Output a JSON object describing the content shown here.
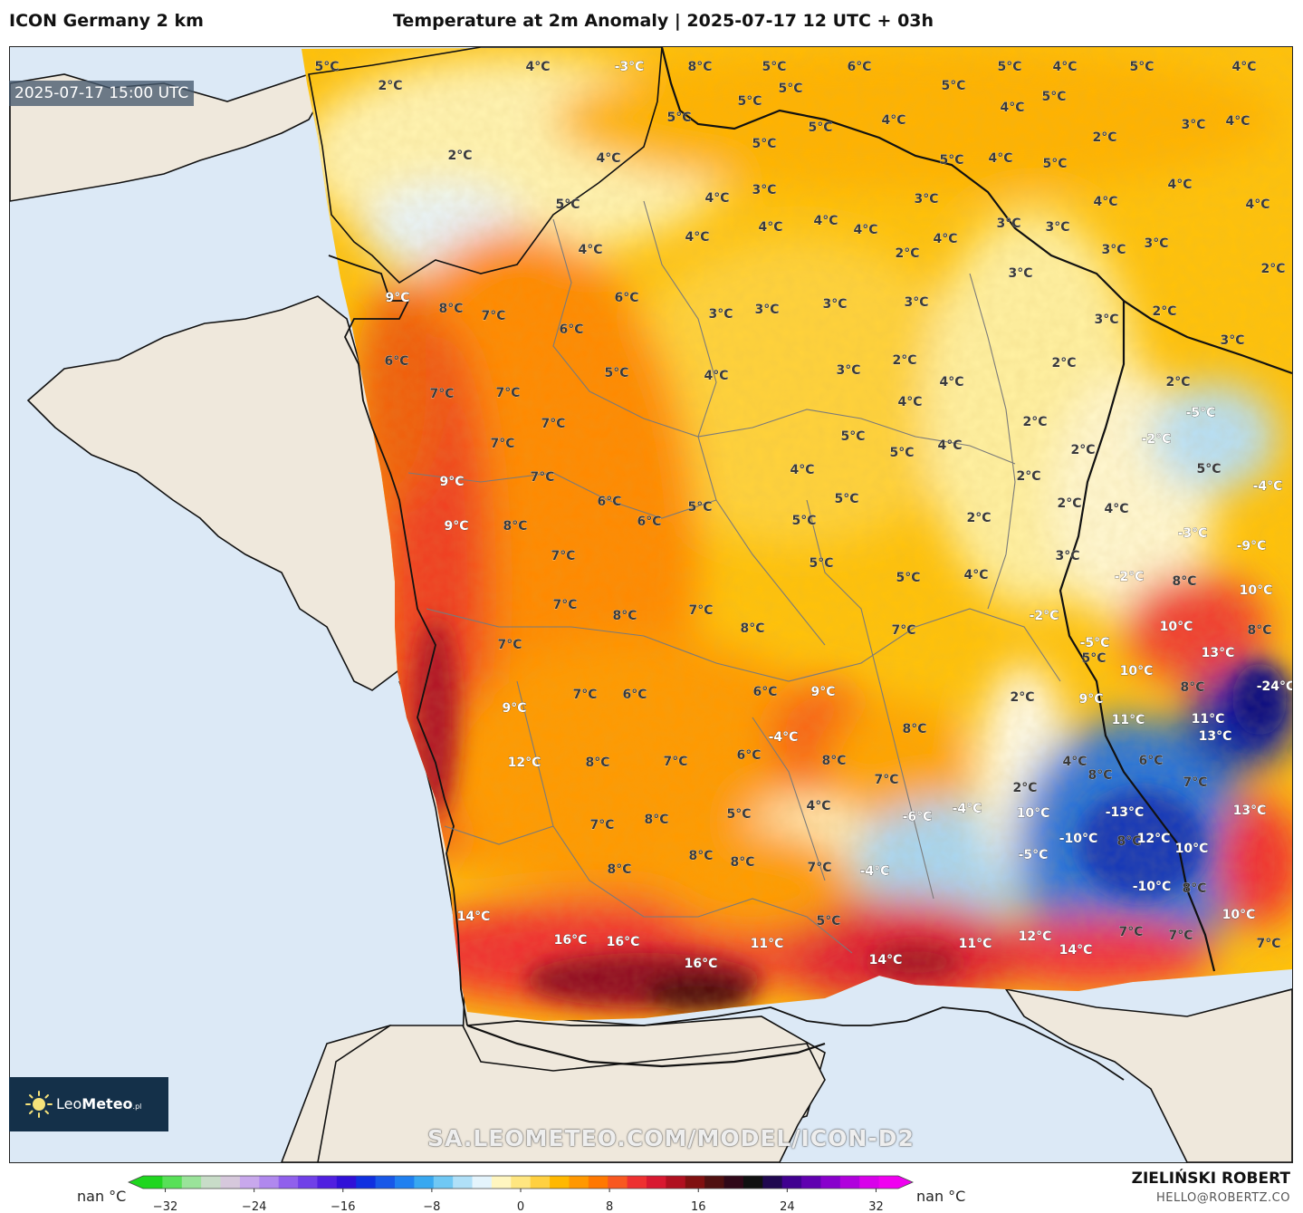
{
  "header": {
    "model": "ICON Germany 2 km",
    "title": "Temperature at 2m Anomaly | 2025-07-17 12 UTC + 03h"
  },
  "map": {
    "valid_time": "2025-07-17 15:00 UTC",
    "colors": {
      "sea": "#dce9f6",
      "land_outside": "#efe8dc",
      "border": "#111111",
      "region_border": "#7a7a7a"
    },
    "labels": [
      {
        "text": "5°C"
      },
      {
        "text": "4°C"
      },
      {
        "text": "-3°C"
      },
      {
        "text": "8°C"
      },
      {
        "text": "5°C"
      },
      {
        "text": "6°C"
      },
      {
        "text": "5°C"
      },
      {
        "text": "4°C"
      },
      {
        "text": "5°C"
      },
      {
        "text": "2°C"
      },
      {
        "text": "4°C"
      },
      {
        "text": "5°C"
      },
      {
        "text": "5°C"
      },
      {
        "text": "5°C"
      },
      {
        "text": "4°C"
      },
      {
        "text": "5°C"
      },
      {
        "text": "5°C"
      },
      {
        "text": "5°C"
      },
      {
        "text": "4°C"
      },
      {
        "text": "4°C"
      },
      {
        "text": "3°C"
      },
      {
        "text": "2°C"
      },
      {
        "text": "2°C"
      },
      {
        "text": "4°C"
      },
      {
        "text": "5°C"
      },
      {
        "text": "5°C"
      },
      {
        "text": "4°C"
      },
      {
        "text": "5°C"
      },
      {
        "text": "4°C"
      },
      {
        "text": "4°C"
      },
      {
        "text": "3°C"
      },
      {
        "text": "4°C"
      },
      {
        "text": "5°C"
      },
      {
        "text": "4°C"
      },
      {
        "text": "4°C"
      },
      {
        "text": "4°C"
      },
      {
        "text": "4°C"
      },
      {
        "text": "4°C"
      },
      {
        "text": "4°C"
      },
      {
        "text": "3°C"
      },
      {
        "text": "3°C"
      },
      {
        "text": "3°C"
      },
      {
        "text": "3°C"
      },
      {
        "text": "3°C"
      },
      {
        "text": "2°C"
      },
      {
        "text": "9°C"
      },
      {
        "text": "8°C"
      },
      {
        "text": "7°C"
      },
      {
        "text": "6°C"
      },
      {
        "text": "4°C"
      },
      {
        "text": "3°C"
      },
      {
        "text": "2°C"
      },
      {
        "text": "3°C"
      },
      {
        "text": "3°C"
      },
      {
        "text": "2°C"
      },
      {
        "text": "6°C"
      },
      {
        "text": "6°C"
      },
      {
        "text": "5°C"
      },
      {
        "text": "3°C"
      },
      {
        "text": "3°C"
      },
      {
        "text": "3°C"
      },
      {
        "text": "3°C"
      },
      {
        "text": "2°C"
      },
      {
        "text": "3°C"
      },
      {
        "text": "7°C"
      },
      {
        "text": "7°C"
      },
      {
        "text": "4°C"
      },
      {
        "text": "2°C"
      },
      {
        "text": "7°C"
      },
      {
        "text": "4°C"
      },
      {
        "text": "2°C"
      },
      {
        "text": "2°C"
      },
      {
        "text": "-5°C"
      },
      {
        "text": "4°C"
      },
      {
        "text": "7°C"
      },
      {
        "text": "5°C"
      },
      {
        "text": "5°C"
      },
      {
        "text": "4°C"
      },
      {
        "text": "2°C"
      },
      {
        "text": "-2°C"
      },
      {
        "text": "9°C"
      },
      {
        "text": "7°C"
      },
      {
        "text": "4°C"
      },
      {
        "text": "2°C"
      },
      {
        "text": "5°C"
      },
      {
        "text": "6°C"
      },
      {
        "text": "5°C"
      },
      {
        "text": "5°C"
      },
      {
        "text": "2°C"
      },
      {
        "text": "4°C"
      },
      {
        "text": "-4°C"
      },
      {
        "text": "9°C"
      },
      {
        "text": "8°C"
      },
      {
        "text": "6°C"
      },
      {
        "text": "5°C"
      },
      {
        "text": "2°C"
      },
      {
        "text": "-3°C"
      },
      {
        "text": "-9°C"
      },
      {
        "text": "7°C"
      },
      {
        "text": "5°C"
      },
      {
        "text": "5°C"
      },
      {
        "text": "4°C"
      },
      {
        "text": "3°C"
      },
      {
        "text": "-2°C"
      },
      {
        "text": "8°C"
      },
      {
        "text": "7°C"
      },
      {
        "text": "8°C"
      },
      {
        "text": "7°C"
      },
      {
        "text": "8°C"
      },
      {
        "text": "7°C"
      },
      {
        "text": "-2°C"
      },
      {
        "text": "10°C"
      },
      {
        "text": "10°C"
      },
      {
        "text": "8°C"
      },
      {
        "text": "7°C"
      },
      {
        "text": "-5°C"
      },
      {
        "text": "13°C"
      },
      {
        "text": "5°C"
      },
      {
        "text": "10°C"
      },
      {
        "text": "9°C"
      },
      {
        "text": "7°C"
      },
      {
        "text": "6°C"
      },
      {
        "text": "6°C"
      },
      {
        "text": "9°C"
      },
      {
        "text": "2°C"
      },
      {
        "text": "9°C"
      },
      {
        "text": "8°C"
      },
      {
        "text": "-24°C"
      },
      {
        "text": "8°C"
      },
      {
        "text": "11°C"
      },
      {
        "text": "-4°C"
      },
      {
        "text": "8°C"
      },
      {
        "text": "7°C"
      },
      {
        "text": "7°C"
      },
      {
        "text": "6°C"
      },
      {
        "text": "11°C"
      },
      {
        "text": "13°C"
      },
      {
        "text": "4°C"
      },
      {
        "text": "8°C"
      },
      {
        "text": "6°C"
      },
      {
        "text": "12°C"
      },
      {
        "text": "8°C"
      },
      {
        "text": "7°C"
      },
      {
        "text": "2°C"
      },
      {
        "text": "13°C"
      },
      {
        "text": "5°C"
      },
      {
        "text": "4°C"
      },
      {
        "text": "-6°C"
      },
      {
        "text": "-4°C"
      },
      {
        "text": "10°C"
      },
      {
        "text": "-13°C"
      },
      {
        "text": "12°C"
      },
      {
        "text": "7°C"
      },
      {
        "text": "8°C"
      },
      {
        "text": "-10°C"
      },
      {
        "text": "8°C"
      },
      {
        "text": "10°C"
      },
      {
        "text": "8°C"
      },
      {
        "text": "8°C"
      },
      {
        "text": "-5°C"
      },
      {
        "text": "8°C"
      },
      {
        "text": "7°C"
      },
      {
        "text": "-4°C"
      },
      {
        "text": "-10°C"
      },
      {
        "text": "8°C"
      },
      {
        "text": "14°C"
      },
      {
        "text": "5°C"
      },
      {
        "text": "10°C"
      },
      {
        "text": "16°C"
      },
      {
        "text": "16°C"
      },
      {
        "text": "11°C"
      },
      {
        "text": "11°C"
      },
      {
        "text": "12°C"
      },
      {
        "text": "7°C"
      },
      {
        "text": "7°C"
      },
      {
        "text": "7°C"
      },
      {
        "text": "16°C"
      },
      {
        "text": "14°C"
      },
      {
        "text": "14°C"
      }
    ]
  },
  "watermark": "SA.LEOMETEO.COM/MODEL/ICON-D2",
  "logo": {
    "brand_light": "Leo",
    "brand_bold": "Meteo",
    "suffix": ".pl"
  },
  "colorbar": {
    "ticks": [
      "−32",
      "−24",
      "−16",
      "−8",
      "0",
      "8",
      "16",
      "24",
      "32"
    ],
    "tick_values": [
      -32,
      -24,
      -16,
      -8,
      0,
      8,
      16,
      24,
      32
    ],
    "min": -34,
    "max": 34,
    "under_label": "nan °C",
    "over_label": "nan °C",
    "colors": [
      "#1fd61f",
      "#58e058",
      "#9ae39a",
      "#c8dcc8",
      "#d6c8dc",
      "#c8a8ec",
      "#b088ee",
      "#9060ec",
      "#7040e8",
      "#5020e0",
      "#3010d8",
      "#1030e0",
      "#1858e8",
      "#2080f0",
      "#38a8f0",
      "#70c8f4",
      "#b0e0f8",
      "#e4f4fc",
      "#fff6c0",
      "#ffe680",
      "#ffd040",
      "#ffb800",
      "#ff9800",
      "#ff7800",
      "#f85820",
      "#ee3030",
      "#d81830",
      "#b01020",
      "#801010",
      "#501010",
      "#300818",
      "#101010",
      "#200850",
      "#400090",
      "#6000b0",
      "#8800cc",
      "#b000dd",
      "#d800ea",
      "#f000f0"
    ]
  },
  "author": {
    "name": "ZIELIŃSKI ROBERT",
    "email": "HELLO@ROBERTZ.CO"
  }
}
